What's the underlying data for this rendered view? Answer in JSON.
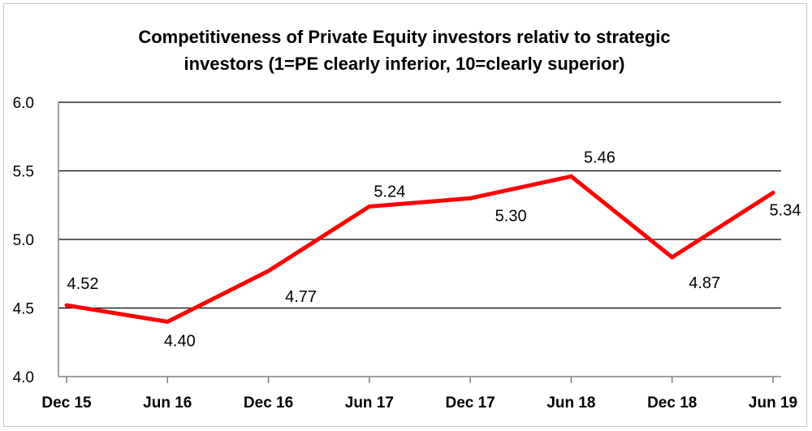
{
  "chart_data": {
    "type": "line",
    "title_lines": [
      "Competitiveness of Private Equity investors relativ to strategic",
      "investors (1=PE clearly inferior, 10=clearly superior)"
    ],
    "categories": [
      "Dec 15",
      "Jun 16",
      "Dec 16",
      "Jun 17",
      "Dec 17",
      "Jun 18",
      "Dec 18",
      "Jun 19"
    ],
    "series": [
      {
        "values": [
          4.52,
          4.4,
          4.77,
          5.24,
          5.3,
          5.46,
          4.87,
          5.34
        ],
        "color": "#ff0000"
      }
    ],
    "data_labels": [
      "4.52",
      "4.40",
      "4.77",
      "5.24",
      "5.30",
      "5.46",
      "4.87",
      "5.34"
    ],
    "y_ticks": [
      "4.0",
      "4.5",
      "5.0",
      "5.5",
      "6.0"
    ],
    "ylim": [
      4.0,
      6.0
    ],
    "grid": true,
    "legend": "none"
  }
}
